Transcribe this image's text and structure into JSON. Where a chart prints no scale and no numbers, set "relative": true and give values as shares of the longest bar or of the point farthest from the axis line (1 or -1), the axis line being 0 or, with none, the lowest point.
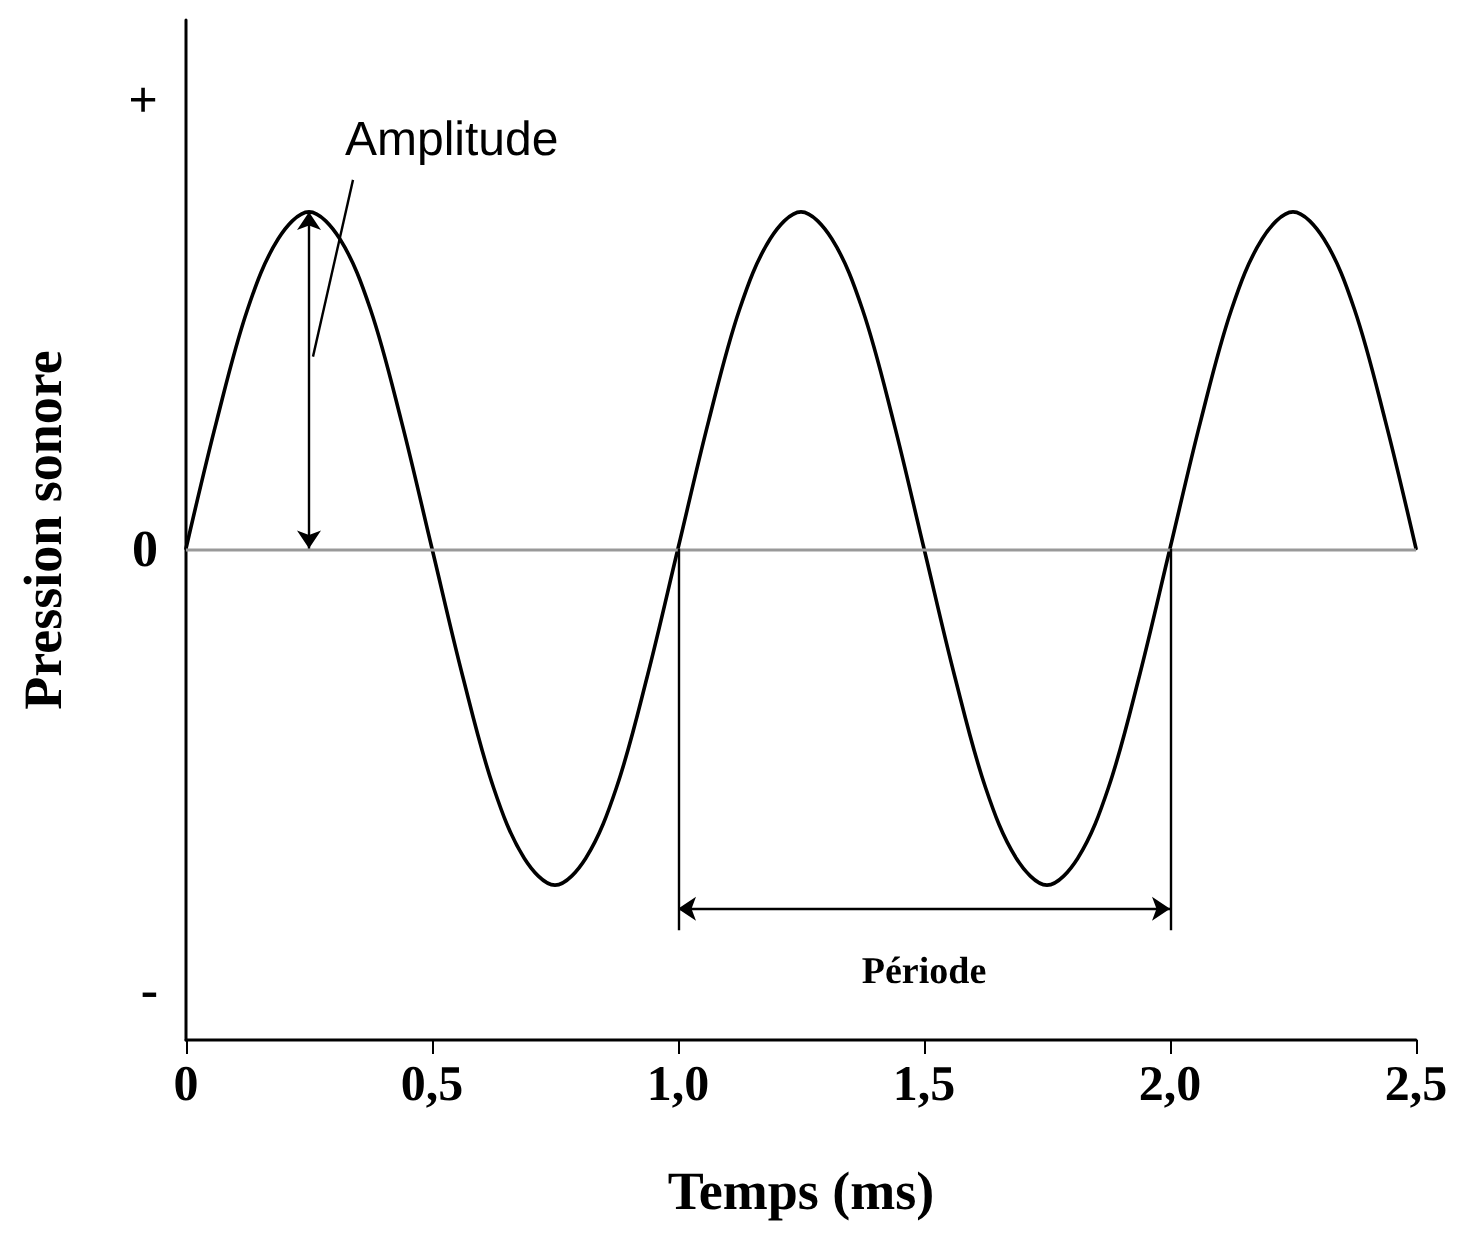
{
  "chart_data": {
    "type": "line",
    "relative": true,
    "xlabel": "Temps (ms)",
    "ylabel": "Pression sonore",
    "x": [
      0,
      0.0625,
      0.125,
      0.1875,
      0.25,
      0.3125,
      0.375,
      0.4375,
      0.5,
      0.5625,
      0.625,
      0.6875,
      0.75,
      0.8125,
      0.875,
      0.9375,
      1,
      1.0625,
      1.125,
      1.1875,
      1.25,
      1.3125,
      1.375,
      1.4375,
      1.5,
      1.5625,
      1.625,
      1.6875,
      1.75,
      1.8125,
      1.875,
      1.9375,
      2,
      2.0625,
      2.125,
      2.1875,
      2.25,
      2.3125,
      2.375,
      2.4375,
      2.5
    ],
    "series": [
      {
        "color": "#000000",
        "values": [
          0,
          0.38,
          0.71,
          0.92,
          1,
          0.92,
          0.71,
          0.38,
          0,
          -0.38,
          -0.71,
          -0.92,
          -1,
          -0.92,
          -0.71,
          -0.38,
          0,
          0.38,
          0.71,
          0.92,
          1,
          0.92,
          0.71,
          0.38,
          0,
          -0.38,
          -0.71,
          -0.92,
          -1,
          -0.92,
          -0.71,
          -0.38,
          0,
          0.38,
          0.71,
          0.92,
          1,
          0.92,
          0.71,
          0.38,
          0
        ]
      }
    ],
    "xlim": [
      0,
      2.5
    ],
    "xticks": [
      0,
      {
        "value": 0.5,
        "label": "0,5"
      },
      {
        "value": 1,
        "label": "1,0"
      },
      {
        "value": 1.5,
        "label": "1,5"
      },
      {
        "value": 2,
        "label": "2,0"
      },
      {
        "value": 2.5,
        "label": "2,5"
      }
    ],
    "ref_lines": [
      {
        "axis": "y",
        "value": 0,
        "color": "#999999"
      },
      {
        "axis": "x",
        "value": 1,
        "color": "#000000"
      },
      {
        "axis": "x",
        "value": 2,
        "color": "#000000"
      }
    ],
    "annotations": [
      {
        "text": "Amplitude",
        "x": 0.25,
        "y": 1
      },
      "Période",
      "+",
      "0",
      "-"
    ],
    "grid": false,
    "marker": "none",
    "line_style": "solid"
  }
}
